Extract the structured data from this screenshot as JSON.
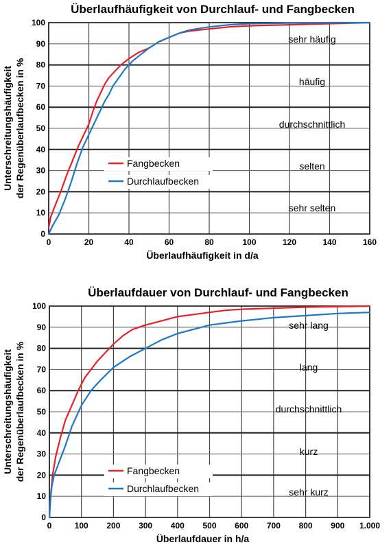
{
  "chart_data": [
    {
      "type": "line",
      "title": "Überlaufhäufigkeit von Durchlauf- und Fangbecken",
      "xlabel": "Überlaufhäufigkeit in d/a",
      "ylabel": [
        "Unterschreitungshäufigkeit",
        "der Regenüberlaufbecken in %"
      ],
      "xlim": [
        0,
        160
      ],
      "ylim": [
        0,
        100
      ],
      "x_ticks": [
        "0",
        "20",
        "40",
        "60",
        "80",
        "100",
        "120",
        "140",
        "160"
      ],
      "y_ticks": [
        "0",
        "10",
        "20",
        "30",
        "40",
        "50",
        "60",
        "70",
        "80",
        "90",
        "100"
      ],
      "grid": true,
      "legend_position": "center-left",
      "bands": [
        "sehr häufig",
        "häufig",
        "durchschnittlich",
        "selten",
        "sehr selten"
      ],
      "series": [
        {
          "name": "Fangbecken",
          "color": "#e8202a",
          "x": [
            0,
            1,
            3,
            6,
            9,
            12,
            15,
            18,
            20,
            22,
            24,
            26,
            28,
            30,
            33,
            36,
            40,
            45,
            50,
            55,
            60,
            65,
            70,
            80,
            90,
            100,
            120,
            140,
            160
          ],
          "y": [
            3,
            8,
            13,
            20,
            28,
            35,
            42,
            48,
            52,
            58,
            63,
            67,
            71,
            74,
            77,
            80,
            83,
            86,
            88,
            91,
            93,
            95,
            96,
            97,
            98,
            98.5,
            99,
            99.5,
            100
          ]
        },
        {
          "name": "Durchlaufbecken",
          "color": "#1e78c8",
          "x": [
            0,
            2,
            5,
            8,
            11,
            14,
            17,
            20,
            22,
            24,
            26,
            28,
            30,
            32,
            35,
            38,
            42,
            46,
            50,
            55,
            60,
            65,
            70,
            80,
            90,
            100,
            120,
            140,
            160
          ],
          "y": [
            0,
            4,
            9,
            16,
            24,
            33,
            41,
            47,
            51,
            55,
            59,
            63,
            66,
            70,
            74,
            78,
            82,
            85,
            88,
            91,
            93,
            95,
            96.5,
            98,
            99,
            99.5,
            99.8,
            100,
            100
          ]
        }
      ]
    },
    {
      "type": "line",
      "title": "Überlaufdauer von Durchlauf- und Fangbecken",
      "xlabel": "Überlaufdauer in h/a",
      "ylabel": [
        "Unterschreitungshäufigkeit",
        "der Regenüberlaufbecken in %"
      ],
      "xlim": [
        0,
        1000
      ],
      "ylim": [
        0,
        100
      ],
      "x_ticks": [
        "0",
        "100",
        "200",
        "300",
        "400",
        "500",
        "600",
        "700",
        "800",
        "900",
        "1.000"
      ],
      "y_ticks": [
        "0",
        "10",
        "20",
        "30",
        "40",
        "50",
        "60",
        "70",
        "80",
        "90",
        "100"
      ],
      "grid": true,
      "legend_position": "bottom-left",
      "bands": [
        "sehr lang",
        "lang",
        "durchschnittlich",
        "kurz",
        "sehr kurz"
      ],
      "series": [
        {
          "name": "Fangbecken",
          "color": "#e8202a",
          "x": [
            0,
            5,
            10,
            20,
            35,
            50,
            70,
            90,
            110,
            130,
            150,
            175,
            200,
            230,
            260,
            300,
            350,
            400,
            450,
            500,
            550,
            600,
            700,
            800,
            900,
            1000
          ],
          "y": [
            0,
            12,
            20,
            29,
            38,
            46,
            53,
            60,
            66,
            70,
            74,
            78,
            82,
            86,
            89,
            91,
            93,
            95,
            96,
            97,
            98,
            98.5,
            99,
            99.5,
            99.7,
            100
          ]
        },
        {
          "name": "Durchlaufbecken",
          "color": "#1e78c8",
          "x": [
            0,
            3,
            8,
            15,
            30,
            50,
            70,
            100,
            130,
            160,
            200,
            250,
            300,
            350,
            400,
            450,
            500,
            550,
            600,
            700,
            800,
            900,
            1000
          ],
          "y": [
            0,
            8,
            15,
            20,
            26,
            34,
            43,
            53,
            60,
            65,
            71,
            76,
            80,
            84,
            87,
            89,
            91,
            92,
            93,
            94.5,
            95.5,
            96.5,
            97
          ]
        }
      ]
    }
  ]
}
